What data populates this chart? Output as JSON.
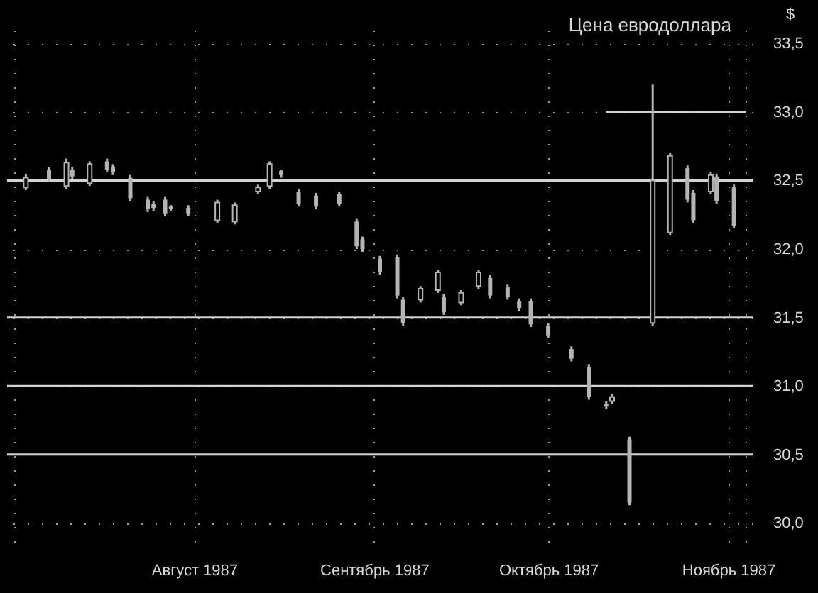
{
  "chart_data": {
    "type": "candlestick",
    "title": "Цена евродоллара",
    "ylabel": "$",
    "color": "#b4b4b4",
    "x": [
      "1987-07-03",
      "1987-07-07",
      "1987-07-10",
      "1987-07-11",
      "1987-07-14",
      "1987-07-17",
      "1987-07-18",
      "1987-07-21",
      "1987-07-24",
      "1987-07-25",
      "1987-07-27",
      "1987-07-28",
      "1987-07-31",
      "1987-08-05",
      "1987-08-08",
      "1987-08-12",
      "1987-08-14",
      "1987-08-16",
      "1987-08-19",
      "1987-08-22",
      "1987-08-26",
      "1987-08-29",
      "1987-08-30",
      "1987-09-02",
      "1987-09-05",
      "1987-09-06",
      "1987-09-09",
      "1987-09-12",
      "1987-09-13",
      "1987-09-16",
      "1987-09-19",
      "1987-09-21",
      "1987-09-24",
      "1987-09-26",
      "1987-09-28",
      "1987-10-01",
      "1987-10-05",
      "1987-10-08",
      "1987-10-11",
      "1987-10-12",
      "1987-10-15",
      "1987-10-19",
      "1987-10-22",
      "1987-10-25",
      "1987-10-26",
      "1987-10-29",
      "1987-10-30",
      "1987-11-02"
    ],
    "ohlc": [
      [
        32.45,
        32.55,
        32.43,
        32.52
      ],
      [
        32.58,
        32.6,
        32.49,
        32.51
      ],
      [
        32.46,
        32.66,
        32.44,
        32.63
      ],
      [
        32.58,
        32.6,
        32.51,
        32.53
      ],
      [
        32.48,
        32.64,
        32.46,
        32.62
      ],
      [
        32.64,
        32.66,
        32.56,
        32.58
      ],
      [
        32.6,
        32.62,
        32.54,
        32.56
      ],
      [
        32.52,
        32.54,
        32.35,
        32.37
      ],
      [
        32.36,
        32.38,
        32.27,
        32.29
      ],
      [
        32.33,
        32.35,
        32.28,
        32.3
      ],
      [
        32.36,
        32.38,
        32.24,
        32.26
      ],
      [
        32.31,
        32.32,
        32.28,
        32.29
      ],
      [
        32.3,
        32.32,
        32.24,
        32.26
      ],
      [
        32.21,
        32.36,
        32.19,
        32.34
      ],
      [
        32.2,
        32.34,
        32.18,
        32.32
      ],
      [
        32.42,
        32.47,
        32.4,
        32.45
      ],
      [
        32.46,
        32.64,
        32.44,
        32.62
      ],
      [
        32.57,
        32.58,
        32.52,
        32.54
      ],
      [
        32.42,
        32.44,
        32.31,
        32.33
      ],
      [
        32.39,
        32.41,
        32.29,
        32.31
      ],
      [
        32.4,
        32.42,
        32.31,
        32.33
      ],
      [
        32.2,
        32.22,
        32.0,
        32.02
      ],
      [
        32.07,
        32.09,
        31.98,
        32.0
      ],
      [
        31.93,
        31.95,
        31.81,
        31.83
      ],
      [
        31.94,
        31.96,
        31.64,
        31.66
      ],
      [
        31.63,
        31.65,
        31.44,
        31.46
      ],
      [
        31.63,
        31.73,
        31.61,
        31.71
      ],
      [
        31.7,
        31.85,
        31.68,
        31.83
      ],
      [
        31.65,
        31.67,
        31.52,
        31.54
      ],
      [
        31.61,
        31.7,
        31.59,
        31.68
      ],
      [
        31.73,
        31.85,
        31.71,
        31.83
      ],
      [
        31.79,
        31.81,
        31.64,
        31.66
      ],
      [
        31.72,
        31.74,
        31.63,
        31.65
      ],
      [
        31.62,
        31.64,
        31.55,
        31.57
      ],
      [
        31.62,
        31.64,
        31.43,
        31.45
      ],
      [
        31.44,
        31.46,
        31.35,
        31.37
      ],
      [
        31.27,
        31.29,
        31.18,
        31.2
      ],
      [
        31.14,
        31.16,
        30.9,
        30.92
      ],
      [
        30.87,
        30.89,
        30.83,
        30.85
      ],
      [
        30.89,
        30.94,
        30.87,
        30.92
      ],
      [
        30.61,
        30.63,
        30.13,
        30.15
      ],
      [
        31.46,
        33.2,
        31.44,
        32.5
      ],
      [
        32.12,
        32.7,
        32.1,
        32.68
      ],
      [
        32.59,
        32.61,
        32.34,
        32.36
      ],
      [
        32.41,
        32.43,
        32.19,
        32.21
      ],
      [
        32.42,
        32.56,
        32.4,
        32.54
      ],
      [
        32.53,
        32.55,
        32.33,
        32.35
      ],
      [
        32.45,
        32.47,
        32.15,
        32.17
      ]
    ],
    "series": [
      {
        "type": "line",
        "x": [
          "1987-10-11",
          "1987-11-04"
        ],
        "values": [
          33.0,
          33.0
        ],
        "color": "#d2d2d2"
      }
    ],
    "ref_lines": [
      {
        "axis": "y",
        "value": 32.5,
        "color": "#d2d2d2"
      },
      {
        "axis": "y",
        "value": 31.5,
        "color": "#d2d2d2"
      },
      {
        "axis": "y",
        "value": 31.0,
        "color": "#d2d2d2"
      },
      {
        "axis": "y",
        "value": 30.5,
        "color": "#d2d2d2"
      }
    ],
    "xlim": [
      "1987-07-01",
      "1987-11-04"
    ],
    "xticks": [
      {
        "value": "1987-07-01",
        "label": null
      },
      {
        "value": "1987-08-01",
        "label": "Август 1987"
      },
      {
        "value": "1987-09-01",
        "label": "Сентябрь 1987"
      },
      {
        "value": "1987-10-01",
        "label": "Октябрь 1987"
      },
      {
        "value": "1987-11-01",
        "label": "Ноябрь 1987"
      },
      {
        "value": "1987-11-04",
        "label": null
      }
    ],
    "ylim": [
      29.8,
      33.6
    ],
    "yticks": [
      {
        "value": 30.0,
        "label": "30,0"
      },
      {
        "value": 30.5,
        "label": "30,5"
      },
      {
        "value": 31.0,
        "label": "31,0"
      },
      {
        "value": 31.5,
        "label": "31,5"
      },
      {
        "value": 32.0,
        "label": "32,0"
      },
      {
        "value": 32.5,
        "label": "32,5"
      },
      {
        "value": 33.0,
        "label": "33,0"
      },
      {
        "value": 33.5,
        "label": "33,5"
      }
    ],
    "grid": true
  }
}
